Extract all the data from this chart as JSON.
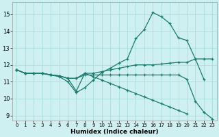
{
  "xlabel": "Humidex (Indice chaleur)",
  "xlim": [
    -0.5,
    23.5
  ],
  "ylim": [
    8.7,
    15.7
  ],
  "yticks": [
    9,
    10,
    11,
    12,
    13,
    14,
    15
  ],
  "xticks": [
    0,
    1,
    2,
    3,
    4,
    5,
    6,
    7,
    8,
    9,
    10,
    11,
    12,
    13,
    14,
    15,
    16,
    17,
    18,
    19,
    20,
    21,
    22,
    23
  ],
  "bg_color": "#cff0f0",
  "grid_color": "#aadddd",
  "line_color": "#1a7a6e",
  "lines": [
    [
      11.7,
      11.5,
      11.5,
      11.5,
      11.4,
      11.3,
      11.0,
      10.35,
      10.65,
      11.1,
      11.55,
      11.8,
      12.1,
      12.35,
      13.55,
      14.1,
      15.1,
      14.85,
      14.45,
      13.6,
      13.45,
      12.35,
      12.35,
      12.35
    ],
    [
      11.7,
      11.5,
      11.5,
      11.5,
      11.4,
      11.35,
      11.2,
      11.2,
      11.5,
      11.5,
      11.6,
      11.7,
      11.8,
      11.9,
      12.0,
      12.0,
      12.0,
      12.05,
      12.1,
      12.15,
      12.15,
      12.35,
      11.15,
      null
    ],
    [
      11.7,
      11.5,
      11.5,
      11.5,
      11.4,
      11.35,
      11.2,
      11.2,
      11.4,
      11.4,
      11.4,
      11.4,
      11.4,
      11.4,
      11.4,
      11.4,
      11.4,
      11.4,
      11.4,
      11.4,
      11.15,
      9.85,
      9.2,
      8.8
    ],
    [
      11.7,
      11.5,
      11.5,
      11.5,
      11.4,
      11.35,
      11.2,
      10.45,
      11.5,
      11.3,
      11.1,
      10.9,
      10.7,
      10.5,
      10.3,
      10.1,
      9.9,
      9.7,
      9.5,
      9.3,
      9.1,
      null,
      null,
      null
    ]
  ]
}
